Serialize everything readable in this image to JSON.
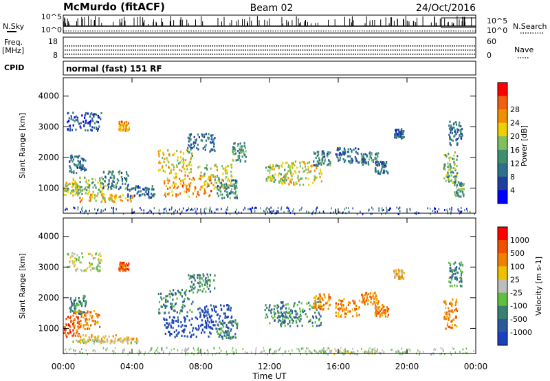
{
  "header": {
    "station": "McMurdo (fitACF)",
    "beam": "Beam 02",
    "date": "24/Oct/2016"
  },
  "status_panel": {
    "nsky_label": "N.Sky",
    "nsearch_label": "N.Search",
    "freq_label_1": "Freq.",
    "freq_label_2": "[MHz]",
    "nave_label": "Nave",
    "cpid_label": "CPID",
    "noise_ticks": [
      "10^5",
      "10^0"
    ],
    "freq_ticks": [
      "18",
      "8"
    ],
    "nave_ticks": [
      "60",
      "0"
    ],
    "cpid_text": "normal (fast) 151 RF"
  },
  "colors": {
    "power": [
      "#0000ff",
      "#1e3fa0",
      "#2e6e8e",
      "#3f8f6f",
      "#7fbf5f",
      "#f0d000",
      "#f09000",
      "#f06010",
      "#ff0000"
    ],
    "velocity": [
      "#1a3fbf",
      "#2a5a9a",
      "#3a7f6f",
      "#5fbf3f",
      "#bdbdbd",
      "#f0c000",
      "#f08000",
      "#f05000",
      "#ff0000"
    ]
  },
  "chart_data": [
    {
      "type": "heatmap",
      "name": "power",
      "xlabel": "",
      "ylabel": "Slant Range [km]",
      "x_ticks": [
        "00:00",
        "04:00",
        "08:00",
        "12:00",
        "16:00",
        "20:00",
        "00:00"
      ],
      "y_ticks": [
        1000,
        2000,
        3000,
        4000
      ],
      "ylim": [
        180,
        4600
      ],
      "xlim_hours": [
        0,
        24
      ],
      "colorbar": {
        "label": "Power [dB]",
        "ticks": [
          "4",
          "8",
          "12",
          "16",
          "20",
          "24",
          "28"
        ],
        "range": [
          0,
          30
        ]
      },
      "blobs": [
        {
          "t": 0.3,
          "r": 1000,
          "dt": 0.6,
          "dr": 250,
          "v": 18
        },
        {
          "t": 0.8,
          "r": 1800,
          "dt": 0.5,
          "dr": 300,
          "v": 8
        },
        {
          "t": 1.5,
          "r": 1100,
          "dt": 1.0,
          "dr": 300,
          "v": 15
        },
        {
          "t": 1.2,
          "r": 3200,
          "dt": 1.0,
          "dr": 300,
          "v": 6
        },
        {
          "t": 2.5,
          "r": 700,
          "dt": 1.6,
          "dr": 120,
          "v": 20
        },
        {
          "t": 3.0,
          "r": 1300,
          "dt": 0.8,
          "dr": 300,
          "v": 10
        },
        {
          "t": 3.5,
          "r": 3050,
          "dt": 0.3,
          "dr": 150,
          "v": 22
        },
        {
          "t": 4.5,
          "r": 900,
          "dt": 0.8,
          "dr": 200,
          "v": 8
        },
        {
          "t": 6.5,
          "r": 1900,
          "dt": 1.0,
          "dr": 400,
          "v": 18
        },
        {
          "t": 7.2,
          "r": 1100,
          "dt": 1.4,
          "dr": 350,
          "v": 22
        },
        {
          "t": 8.0,
          "r": 2500,
          "dt": 0.8,
          "dr": 300,
          "v": 8
        },
        {
          "t": 8.8,
          "r": 1400,
          "dt": 1.0,
          "dr": 400,
          "v": 16
        },
        {
          "t": 9.5,
          "r": 1000,
          "dt": 0.6,
          "dr": 300,
          "v": 10
        },
        {
          "t": 10.2,
          "r": 2200,
          "dt": 0.4,
          "dr": 300,
          "v": 12
        },
        {
          "t": 12.5,
          "r": 1500,
          "dt": 0.8,
          "dr": 300,
          "v": 16
        },
        {
          "t": 13.8,
          "r": 1500,
          "dt": 1.2,
          "dr": 400,
          "v": 18
        },
        {
          "t": 15.0,
          "r": 2000,
          "dt": 0.5,
          "dr": 250,
          "v": 10
        },
        {
          "t": 16.5,
          "r": 2100,
          "dt": 0.7,
          "dr": 250,
          "v": 8
        },
        {
          "t": 17.8,
          "r": 2000,
          "dt": 0.5,
          "dr": 200,
          "v": 10
        },
        {
          "t": 18.5,
          "r": 1700,
          "dt": 0.4,
          "dr": 200,
          "v": 8
        },
        {
          "t": 19.5,
          "r": 2800,
          "dt": 0.3,
          "dr": 150,
          "v": 8
        },
        {
          "t": 22.5,
          "r": 1700,
          "dt": 0.4,
          "dr": 500,
          "v": 14
        },
        {
          "t": 22.8,
          "r": 2800,
          "dt": 0.4,
          "dr": 400,
          "v": 8
        },
        {
          "t": 23.0,
          "r": 1000,
          "dt": 0.3,
          "dr": 250,
          "v": 12
        }
      ]
    },
    {
      "type": "heatmap",
      "name": "velocity",
      "xlabel": "Time UT",
      "ylabel": "Slant Range [km]",
      "x_ticks": [
        "00:00",
        "04:00",
        "08:00",
        "12:00",
        "16:00",
        "20:00",
        "00:00"
      ],
      "y_ticks": [
        1000,
        2000,
        3000,
        4000
      ],
      "ylim": [
        180,
        4600
      ],
      "xlim_hours": [
        0,
        24
      ],
      "colorbar": {
        "label": "Velocity [m s-1]",
        "ticks": [
          "1000",
          "500",
          "100",
          "25",
          "-25",
          "-100",
          "-500",
          "-1000"
        ]
      },
      "blobs": [
        {
          "t": 0.3,
          "r": 1100,
          "dt": 0.6,
          "dr": 350,
          "v": 7
        },
        {
          "t": 1.3,
          "r": 1300,
          "dt": 0.8,
          "dr": 300,
          "v": 6
        },
        {
          "t": 1.2,
          "r": 3200,
          "dt": 1.0,
          "dr": 300,
          "v": 4
        },
        {
          "t": 2.5,
          "r": 700,
          "dt": 1.8,
          "dr": 120,
          "v": 5
        },
        {
          "t": 0.8,
          "r": 1800,
          "dt": 0.5,
          "dr": 300,
          "v": 2
        },
        {
          "t": 3.5,
          "r": 3050,
          "dt": 0.3,
          "dr": 150,
          "v": 7
        },
        {
          "t": 6.5,
          "r": 1900,
          "dt": 1.0,
          "dr": 400,
          "v": 2
        },
        {
          "t": 7.2,
          "r": 1100,
          "dt": 1.4,
          "dr": 350,
          "v": 0
        },
        {
          "t": 8.0,
          "r": 2500,
          "dt": 0.8,
          "dr": 300,
          "v": 2
        },
        {
          "t": 8.8,
          "r": 1400,
          "dt": 1.0,
          "dr": 400,
          "v": 0
        },
        {
          "t": 9.5,
          "r": 1000,
          "dt": 0.6,
          "dr": 300,
          "v": 2
        },
        {
          "t": 12.5,
          "r": 1500,
          "dt": 0.8,
          "dr": 300,
          "v": 2
        },
        {
          "t": 13.8,
          "r": 1500,
          "dt": 1.2,
          "dr": 400,
          "v": 2
        },
        {
          "t": 15.0,
          "r": 1900,
          "dt": 0.5,
          "dr": 250,
          "v": 6
        },
        {
          "t": 16.5,
          "r": 1700,
          "dt": 0.7,
          "dr": 300,
          "v": 6
        },
        {
          "t": 17.8,
          "r": 2000,
          "dt": 0.5,
          "dr": 200,
          "v": 6
        },
        {
          "t": 18.5,
          "r": 1600,
          "dt": 0.4,
          "dr": 200,
          "v": 6
        },
        {
          "t": 19.5,
          "r": 2800,
          "dt": 0.3,
          "dr": 150,
          "v": 5
        },
        {
          "t": 22.5,
          "r": 1500,
          "dt": 0.4,
          "dr": 500,
          "v": 6
        },
        {
          "t": 22.8,
          "r": 2800,
          "dt": 0.4,
          "dr": 400,
          "v": 2
        },
        {
          "t": 2.5,
          "r": 600,
          "dt": 2.0,
          "dr": 60,
          "v": 4
        },
        {
          "t": 17.0,
          "r": 250,
          "dt": 3.0,
          "dr": 60,
          "v": 4
        }
      ]
    }
  ]
}
